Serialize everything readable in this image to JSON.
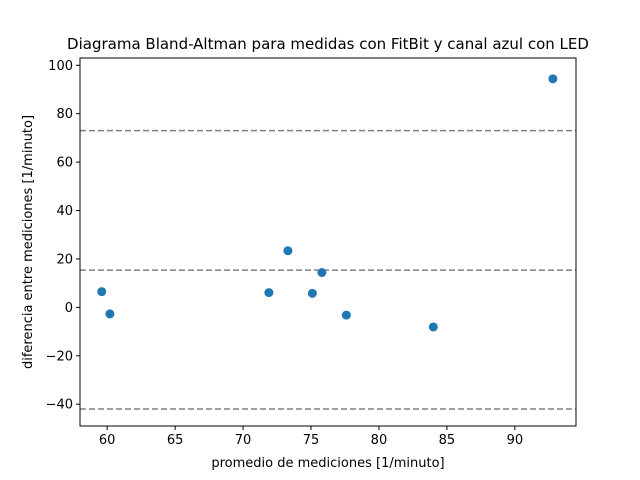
{
  "chart_data": {
    "type": "scatter",
    "title": "Diagrama Bland-Altman para medidas con FitBit y canal azul con LED",
    "xlabel": "promedio de mediciones [1/minuto]",
    "ylabel": "diferencia entre mediciones [1/minuto]",
    "xlim": [
      58,
      94.5
    ],
    "ylim": [
      -49,
      103
    ],
    "xticks": [
      60,
      65,
      70,
      75,
      80,
      85,
      90
    ],
    "yticks": [
      -40,
      -20,
      0,
      20,
      40,
      60,
      80,
      100
    ],
    "x_tick_labels": [
      "60",
      "65",
      "70",
      "75",
      "80",
      "85",
      "90"
    ],
    "y_tick_labels": [
      "−40",
      "−20",
      "0",
      "20",
      "40",
      "60",
      "80",
      "100"
    ],
    "grid": false,
    "points": [
      {
        "x": 59.6,
        "y": 6.5
      },
      {
        "x": 60.2,
        "y": -2.7
      },
      {
        "x": 71.9,
        "y": 6.1
      },
      {
        "x": 73.3,
        "y": 23.4
      },
      {
        "x": 75.1,
        "y": 5.8
      },
      {
        "x": 75.8,
        "y": 14.4
      },
      {
        "x": 77.6,
        "y": -3.2
      },
      {
        "x": 84.0,
        "y": -8.1
      },
      {
        "x": 92.8,
        "y": 94.4
      }
    ],
    "reference_lines": [
      73.0,
      15.4,
      -42.0
    ],
    "colors": {
      "points": "#1f77b4",
      "reference_lines": "#808080"
    }
  }
}
